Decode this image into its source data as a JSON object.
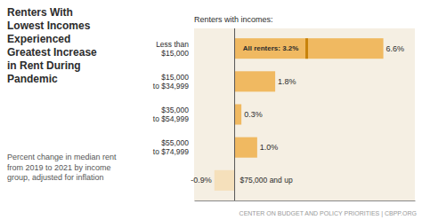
{
  "chart_data": {
    "type": "bar",
    "orientation": "horizontal",
    "title": "Renters With\nLowest Incomes\nExperienced\nGreatest Increase\nin Rent During\nPandemic",
    "subtitle": "Percent change in median rent\nfrom 2019 to 2021 by income\ngroup, adjusted for inflation",
    "y_label": "Renters with incomes:",
    "footer": "CENTER ON BUDGET AND POLICY PRIORITIES | CBPP.ORG",
    "categories": [
      "Less than\n$15,000",
      "$15,000\nto $34,999",
      "$35,000\nto $54,999",
      "$55,000\nto $74,999",
      "$75,000 and up"
    ],
    "values": [
      6.6,
      1.8,
      0.3,
      1.0,
      -0.9
    ],
    "value_labels": [
      "6.6%",
      "1.8%",
      "0.3%",
      "1.0%",
      "-0.9%"
    ],
    "colors": [
      "#f0b961",
      "#f0b961",
      "#f0b961",
      "#f0b961",
      "#f5e0bb"
    ],
    "annotations": [
      {
        "text": "All renters: 3.2%",
        "value": 3.2,
        "color": "#c8820a"
      }
    ],
    "xlim": [
      -1.8,
      8.0
    ],
    "data_labels": true,
    "tick_labels": false,
    "grid": false
  }
}
